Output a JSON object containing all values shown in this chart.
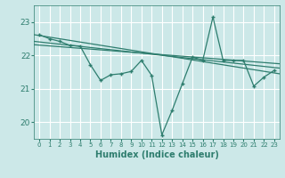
{
  "xlabel": "Humidex (Indice chaleur)",
  "bg_color": "#cce8e8",
  "line_color": "#2e7d6e",
  "x": [
    0,
    1,
    2,
    3,
    4,
    5,
    6,
    7,
    8,
    9,
    10,
    11,
    12,
    13,
    14,
    15,
    16,
    17,
    18,
    19,
    20,
    21,
    22,
    23
  ],
  "y_main": [
    22.62,
    22.5,
    22.42,
    22.3,
    22.28,
    21.72,
    21.25,
    21.42,
    21.45,
    21.52,
    21.85,
    21.4,
    19.62,
    20.35,
    21.15,
    21.95,
    21.85,
    23.15,
    21.85,
    21.85,
    21.85,
    21.08,
    21.35,
    21.55
  ],
  "trend1_start": 22.62,
  "trend1_end": 21.45,
  "trend2_start": 22.42,
  "trend2_end": 21.62,
  "trend3_start": 22.32,
  "trend3_end": 21.75,
  "ylim_min": 19.5,
  "ylim_max": 23.5,
  "xlim_min": -0.5,
  "xlim_max": 23.5,
  "yticks": [
    20,
    21,
    22,
    23
  ],
  "xticks": [
    0,
    1,
    2,
    3,
    4,
    5,
    6,
    7,
    8,
    9,
    10,
    11,
    12,
    13,
    14,
    15,
    16,
    17,
    18,
    19,
    20,
    21,
    22,
    23
  ]
}
